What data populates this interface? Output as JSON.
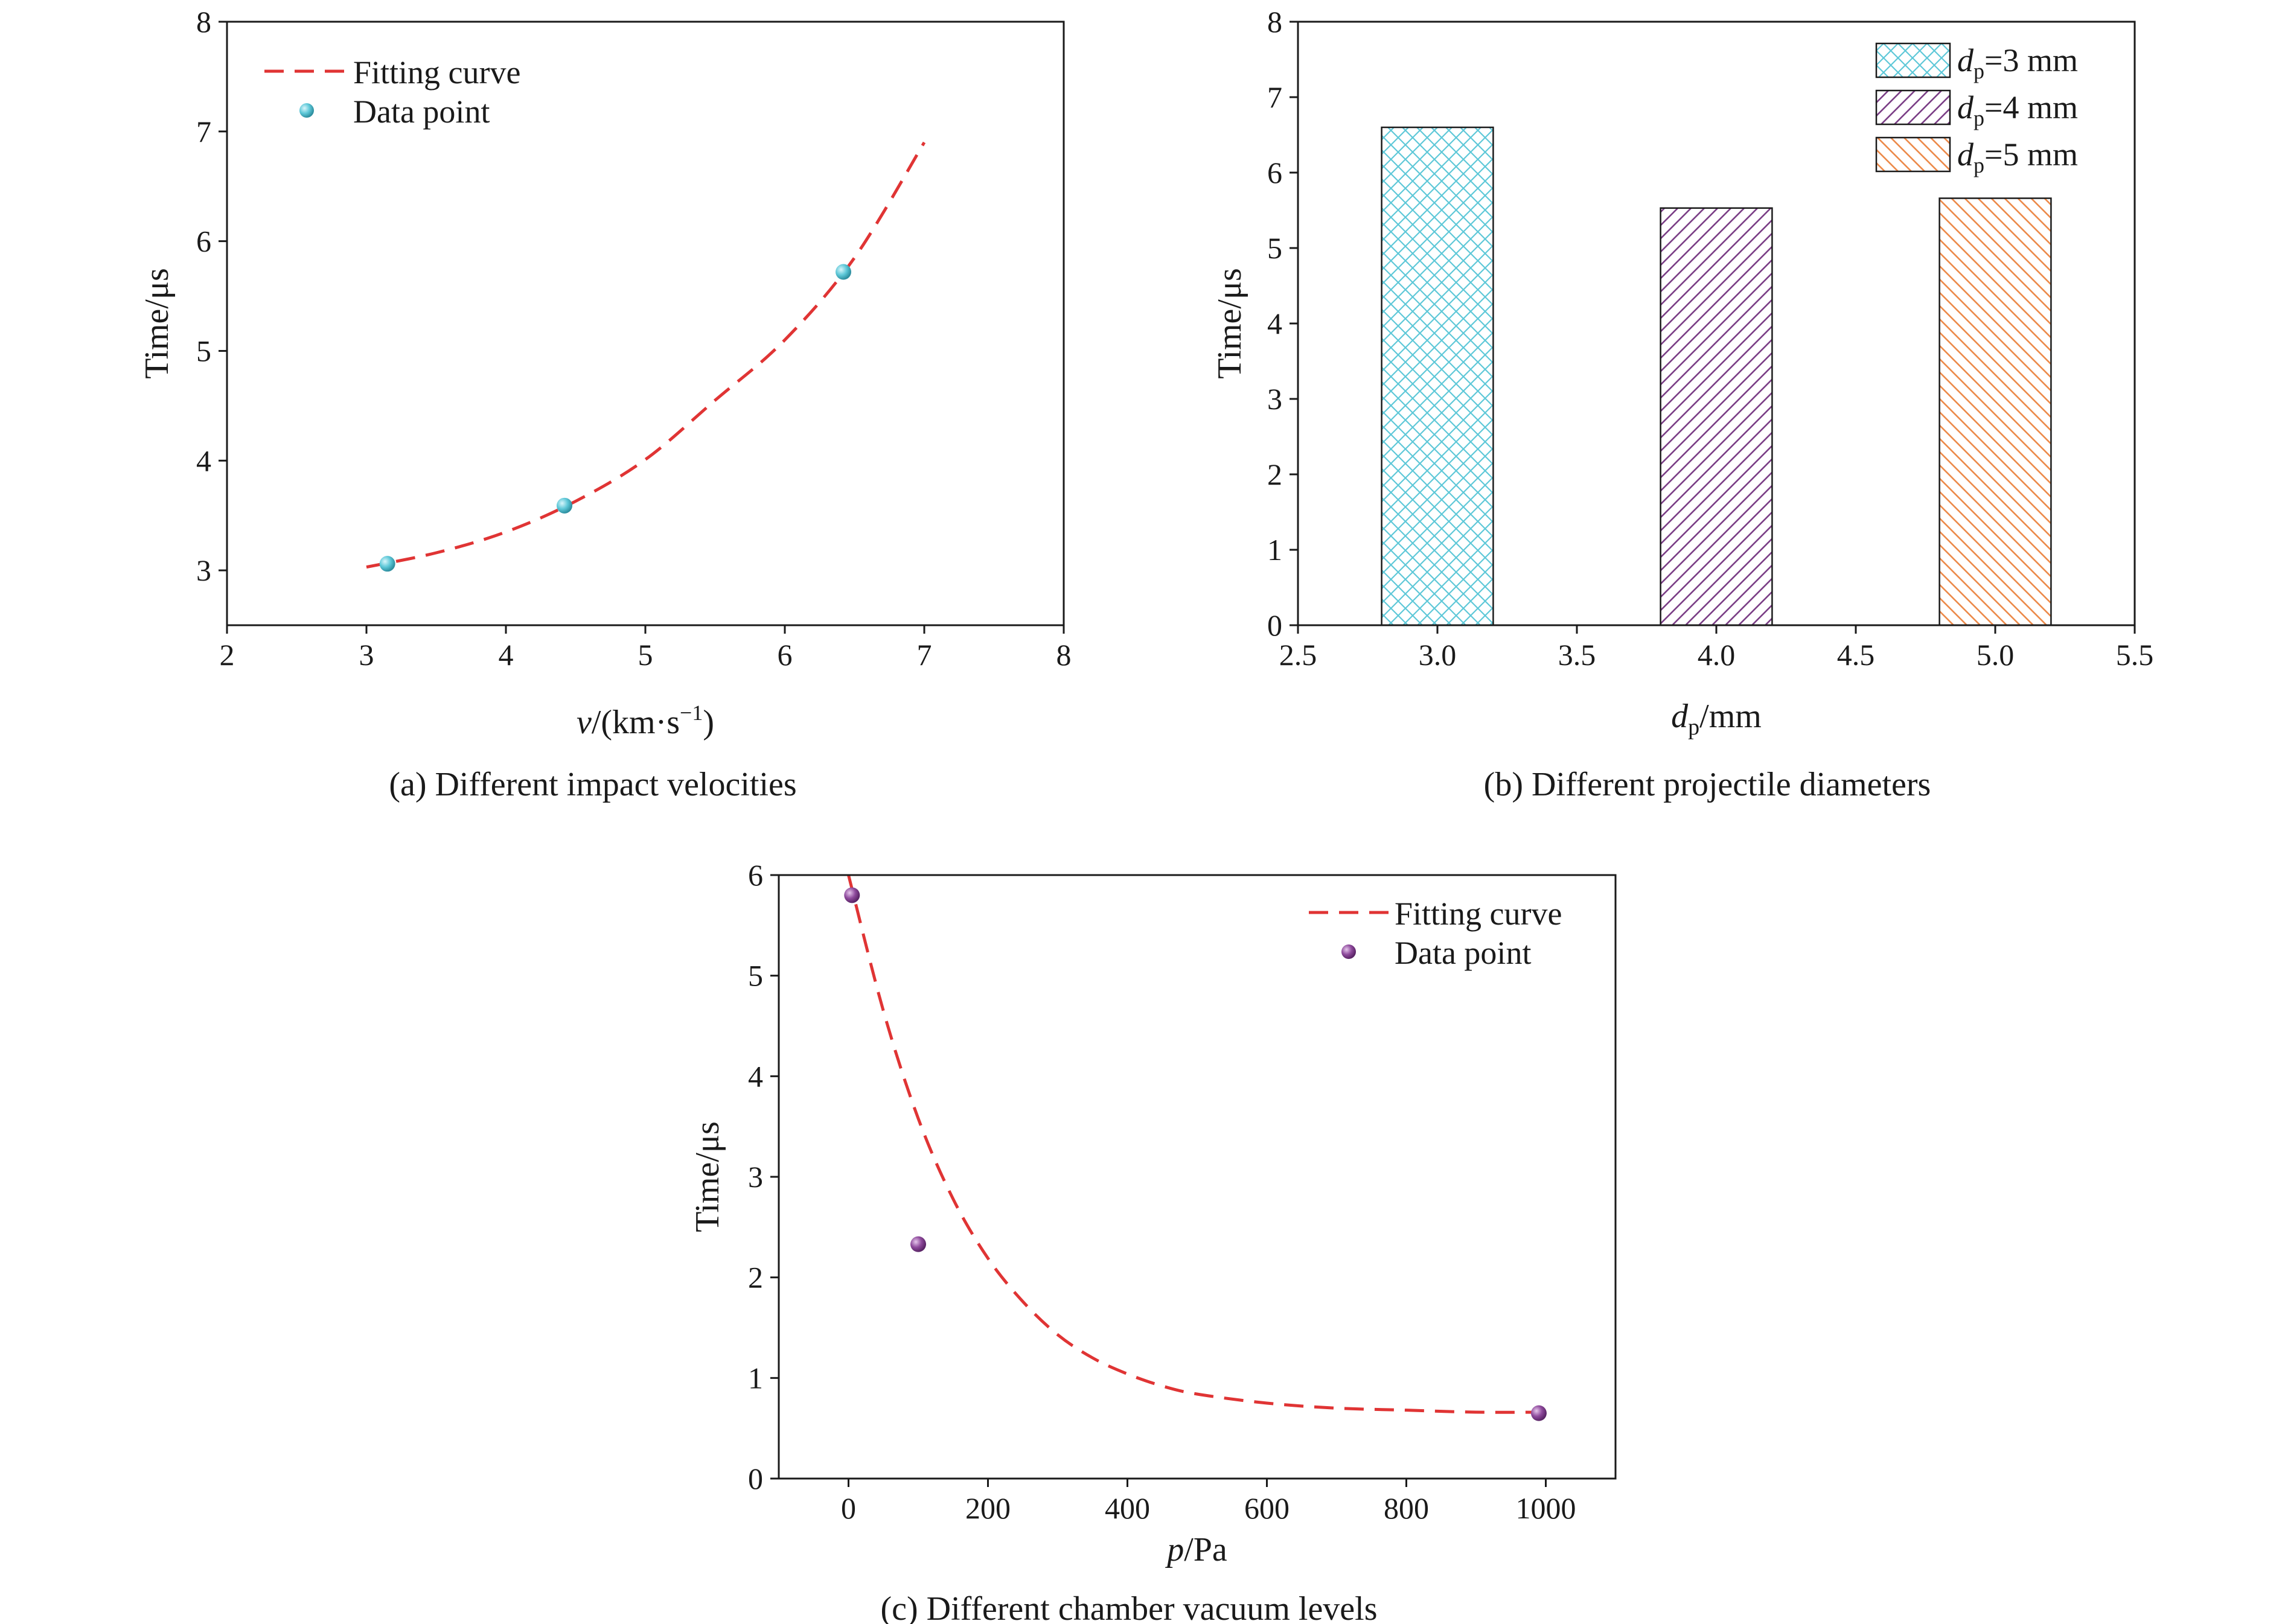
{
  "chart_data": [
    {
      "id": "a",
      "type": "scatter",
      "caption": "(a) Different impact velocities",
      "xlabel_italic": "v",
      "xlabel_rest": "/(km·s",
      "xlabel_sup": "−1",
      "xlabel_close": ")",
      "ylabel": "Time/μs",
      "xlim": [
        2,
        8
      ],
      "ylim": [
        2.5,
        8
      ],
      "xticks": [
        "2",
        "3",
        "4",
        "5",
        "6",
        "7",
        "8"
      ],
      "yticks": [
        "3",
        "4",
        "5",
        "6",
        "7",
        "8"
      ],
      "legend": {
        "position": "top-left",
        "items": [
          {
            "label": "Fitting curve",
            "kind": "dashed-line"
          },
          {
            "label": "Data point",
            "kind": "marker"
          }
        ]
      },
      "series": [
        {
          "kind": "fit",
          "color": "#e03434",
          "x": [
            3.0,
            3.5,
            4.0,
            4.5,
            5.0,
            5.5,
            6.0,
            6.5,
            7.0
          ],
          "y": [
            3.03,
            3.16,
            3.35,
            3.63,
            4.01,
            4.55,
            5.1,
            5.85,
            6.9
          ]
        },
        {
          "kind": "points",
          "color": "#5ec8d8",
          "x": [
            3.15,
            4.42,
            6.42
          ],
          "y": [
            3.06,
            3.59,
            5.72
          ]
        }
      ]
    },
    {
      "id": "b",
      "type": "bar",
      "caption": "(b) Different projectile diameters",
      "xlabel_italic": "d",
      "xlabel_sub": "p",
      "xlabel_rest": "/mm",
      "ylabel": "Time/μs",
      "xlim": [
        2.5,
        5.5
      ],
      "ylim": [
        0,
        8
      ],
      "xticks": [
        "2.5",
        "3.0",
        "3.5",
        "4.0",
        "4.5",
        "5.0",
        "5.5"
      ],
      "yticks": [
        "0",
        "1",
        "2",
        "3",
        "4",
        "5",
        "6",
        "7",
        "8"
      ],
      "bar_width": 0.4,
      "legend": {
        "position": "top-right",
        "items": [
          {
            "italic": "d",
            "sub": "p",
            "rest": "=3 mm",
            "color": "#5ec8d8",
            "pattern": "crosshatch"
          },
          {
            "italic": "d",
            "sub": "p",
            "rest": "=4 mm",
            "color": "#7b3f86",
            "pattern": "diagonal-right"
          },
          {
            "italic": "d",
            "sub": "p",
            "rest": "=5 mm",
            "color": "#ec8a4a",
            "pattern": "diagonal-left"
          }
        ]
      },
      "bars": [
        {
          "x": 3.0,
          "value": 6.6
        },
        {
          "x": 4.0,
          "value": 5.53
        },
        {
          "x": 5.0,
          "value": 5.66
        }
      ]
    },
    {
      "id": "c",
      "type": "scatter",
      "caption": "(c) Different chamber vacuum levels",
      "xlabel_italic": "p",
      "xlabel_rest": "/Pa",
      "ylabel": "Time/μs",
      "xlim": [
        -100,
        1100
      ],
      "ylim": [
        0,
        6
      ],
      "xticks": [
        "0",
        "200",
        "400",
        "600",
        "800",
        "1000"
      ],
      "yticks": [
        "0",
        "1",
        "2",
        "3",
        "4",
        "5",
        "6"
      ],
      "legend": {
        "position": "top-right",
        "items": [
          {
            "label": "Fitting curve",
            "kind": "dashed-line"
          },
          {
            "label": "Data point",
            "kind": "marker"
          }
        ]
      },
      "series": [
        {
          "kind": "fit",
          "color": "#e03434",
          "x": [
            0,
            50,
            100,
            150,
            200,
            250,
            300,
            350,
            400,
            450,
            500,
            600,
            700,
            800,
            900,
            1000
          ],
          "y": [
            6.0,
            4.65,
            3.58,
            2.78,
            2.19,
            1.76,
            1.43,
            1.2,
            1.04,
            0.92,
            0.84,
            0.75,
            0.7,
            0.68,
            0.66,
            0.66
          ]
        },
        {
          "kind": "points",
          "color": "#8e4a9c",
          "x": [
            5,
            100,
            990
          ],
          "y": [
            5.8,
            2.33,
            0.65
          ]
        }
      ]
    }
  ]
}
